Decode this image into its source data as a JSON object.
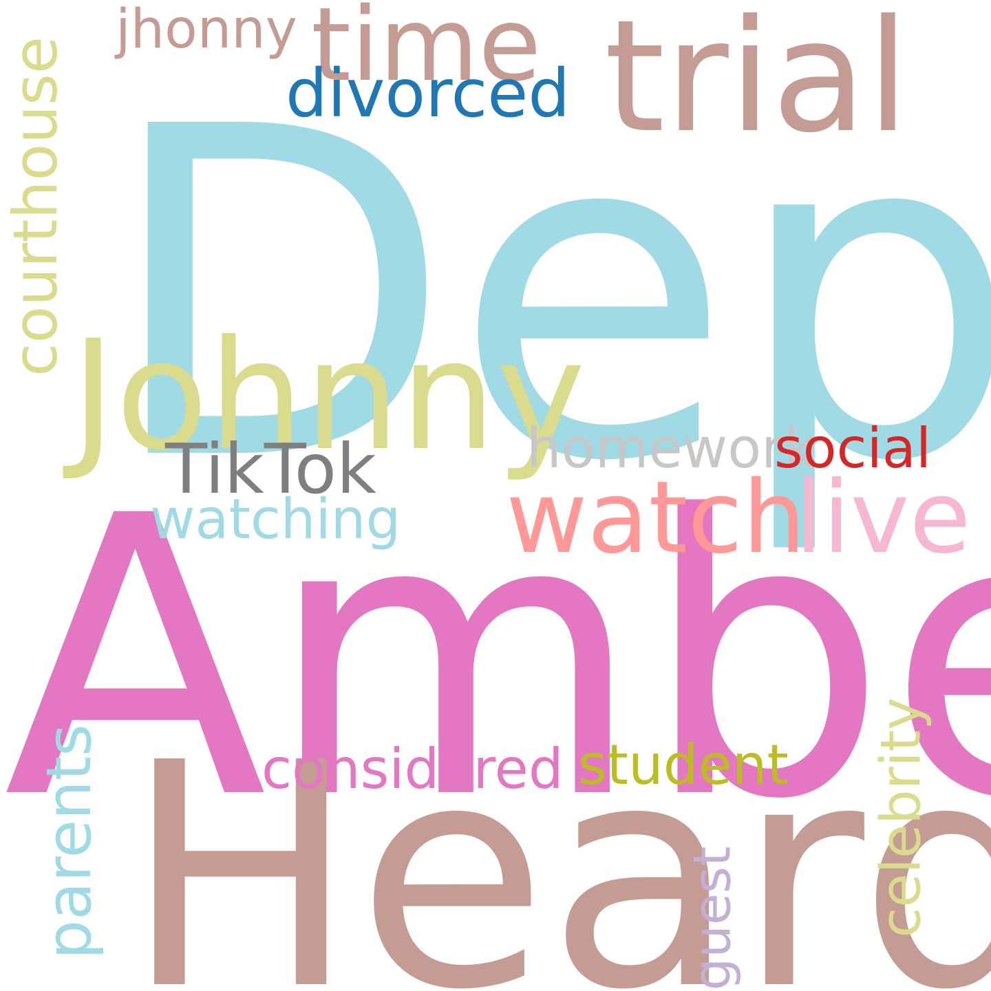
{
  "words": [
    {
      "text": "Depp",
      "color": "#a0dae5",
      "weight": 1.0
    },
    {
      "text": "Amber",
      "color": "#e377c2",
      "weight": 0.95
    },
    {
      "text": "Heard",
      "color": "#c49c94",
      "weight": 0.9
    },
    {
      "text": "trial",
      "color": "#c49c94",
      "weight": 0.45
    },
    {
      "text": "Johnny",
      "color": "#dbdb8d",
      "weight": 0.45
    },
    {
      "text": "time",
      "color": "#c49c94",
      "weight": 0.3
    },
    {
      "text": "courthouse",
      "color": "#dbdb8d",
      "weight": 0.3
    },
    {
      "text": "watch",
      "color": "#ff9896",
      "weight": 0.3
    },
    {
      "text": "live",
      "color": "#f7b6d2",
      "weight": 0.3
    },
    {
      "text": "parents",
      "color": "#a0dae5",
      "weight": 0.25
    },
    {
      "text": "TikTok",
      "color": "#7f7f7f",
      "weight": 0.22
    },
    {
      "text": "divorced",
      "color": "#1f77b4",
      "weight": 0.2
    },
    {
      "text": "celebrity",
      "color": "#dbdb8d",
      "weight": 0.18
    },
    {
      "text": "homework",
      "color": "#c7c7c7",
      "weight": 0.18
    },
    {
      "text": "social",
      "color": "#d62728",
      "weight": 0.18
    },
    {
      "text": "student",
      "color": "#bcbd22",
      "weight": 0.18
    },
    {
      "text": "considered",
      "color": "#e377c2",
      "weight": 0.18
    },
    {
      "text": "watching",
      "color": "#a0dae5",
      "weight": 0.16
    },
    {
      "text": "jhonny",
      "color": "#c49c94",
      "weight": 0.16
    },
    {
      "text": "guest",
      "color": "#c5b0d5",
      "weight": 0.15
    }
  ]
}
